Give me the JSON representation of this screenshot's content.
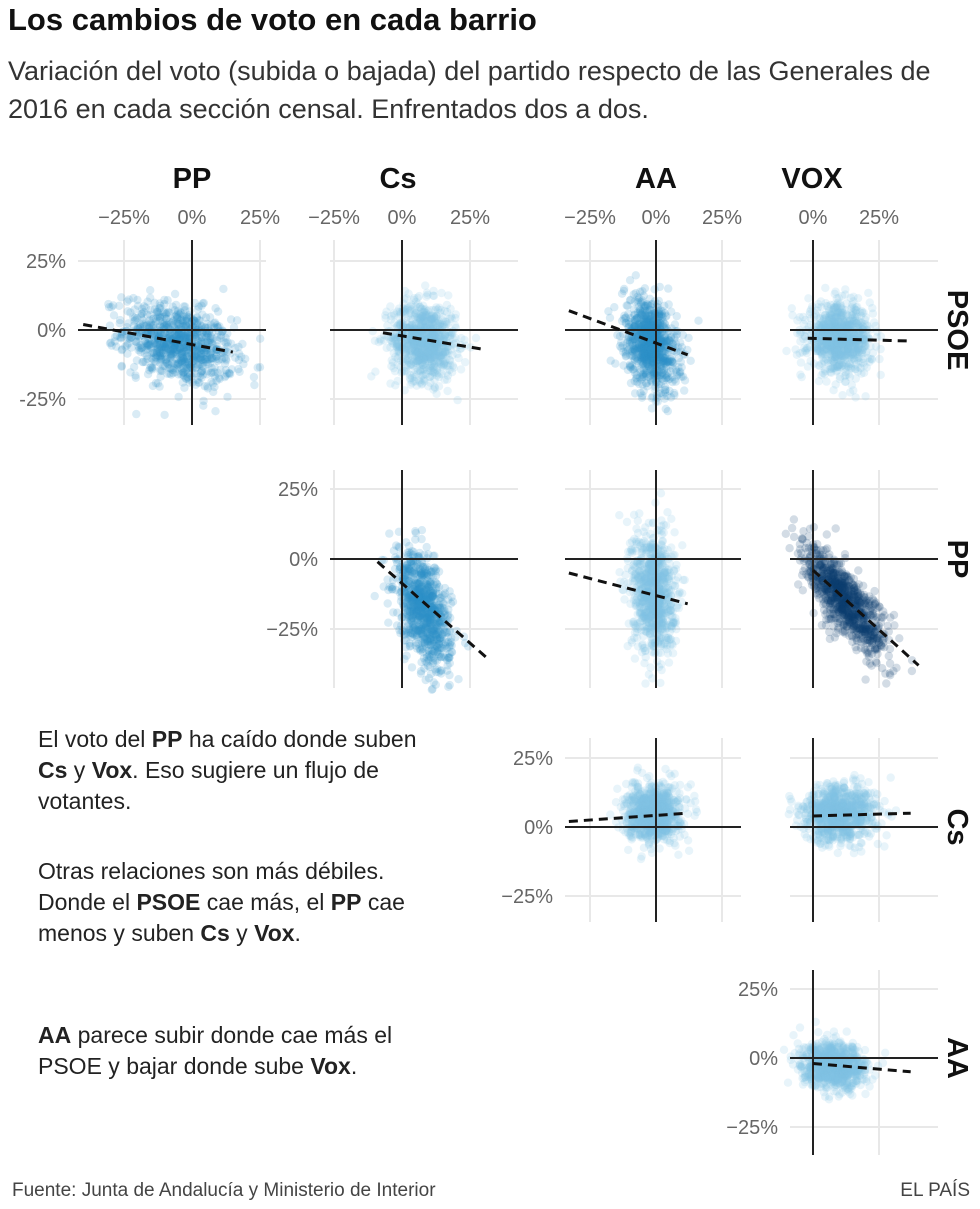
{
  "header": {
    "title": "Los cambios de voto en cada barrio",
    "subtitle": "Variación del voto (subida o bajada) del partido respecto de las Generales de 2016 en cada sección censal. Enfrentados dos a dos."
  },
  "annotations": {
    "p1": [
      {
        "t": "El voto del "
      },
      {
        "t": "PP",
        "b": true
      },
      {
        "t": " ha caído donde suben "
      },
      {
        "t": "Cs",
        "b": true
      },
      {
        "t": " y "
      },
      {
        "t": "Vox",
        "b": true
      },
      {
        "t": ". Eso sugiere un flujo de votantes."
      }
    ],
    "p2": [
      {
        "t": "Otras relaciones son más débiles. Donde el "
      },
      {
        "t": "PSOE",
        "b": true
      },
      {
        "t": " cae más, el "
      },
      {
        "t": "PP",
        "b": true
      },
      {
        "t": " cae menos y suben "
      },
      {
        "t": "Cs",
        "b": true
      },
      {
        "t": " y "
      },
      {
        "t": "Vox",
        "b": true
      },
      {
        "t": "."
      }
    ],
    "p3": [
      {
        "t": "AA",
        "b": true
      },
      {
        "t": " parece subir donde cae más el PSOE y bajar donde sube "
      },
      {
        "t": "Vox",
        "b": true
      },
      {
        "t": "."
      }
    ]
  },
  "footer": {
    "source": "Fuente: Junta de Andalucía y Ministerio de Interior",
    "brand": "EL PAÍS"
  },
  "chart_data": {
    "type": "scatter",
    "description_units": "percentage points of vote change vs. 2016 general election",
    "columns": [
      "PP",
      "Cs",
      "AA",
      "VOX"
    ],
    "rows": [
      "PSOE",
      "PP",
      "Cs",
      "AA"
    ],
    "column_ticks": {
      "PP": [
        "−25%",
        "0%",
        "25%"
      ],
      "Cs": [
        "−25%",
        "0%",
        "25%"
      ],
      "AA": [
        "−25%",
        "0%",
        "25%"
      ],
      "VOX": [
        "0%",
        "25%"
      ]
    },
    "row_ticks": {
      "PSOE": [
        "25%",
        "0%",
        "-25%"
      ],
      "PP": [
        "25%",
        "0%",
        "−25%"
      ],
      "Cs": [
        "25%",
        "0%",
        "−25%"
      ],
      "AA": [
        "25%",
        "0%",
        "−25%"
      ]
    },
    "xlim": {
      "PP": [
        -40,
        25
      ],
      "Cs": [
        -25,
        44
      ],
      "AA": [
        -35,
        33
      ],
      "VOX": [
        -8,
        40
      ]
    },
    "ylim": {
      "PSOE": [
        -35,
        35
      ],
      "PP": [
        -47,
        25
      ],
      "Cs": [
        -32,
        35
      ],
      "AA": [
        -35,
        32
      ]
    },
    "colors": {
      "light": "#7fc3e6",
      "medium": "#2c8fca",
      "dark": "#0b3b6e",
      "trend": "#111111",
      "axis": "#222222",
      "grid": "#e8e8e8"
    },
    "panels": [
      {
        "x": "PP",
        "y": "PSOE",
        "shade": "medium",
        "cloud_center": [
          -5,
          -5
        ],
        "cloud_spread": [
          10,
          7
        ],
        "cloud_slope": -0.25,
        "trend": {
          "x": [
            -40,
            15
          ],
          "y": [
            2,
            -8
          ]
        }
      },
      {
        "x": "Cs",
        "y": "PSOE",
        "shade": "light",
        "cloud_center": [
          8,
          -4
        ],
        "cloud_spread": [
          6,
          7
        ],
        "cloud_slope": -0.1,
        "trend": {
          "x": [
            -7,
            30
          ],
          "y": [
            -1,
            -7
          ]
        }
      },
      {
        "x": "AA",
        "y": "PSOE",
        "shade": "medium",
        "cloud_center": [
          -2,
          -5
        ],
        "cloud_spread": [
          5,
          8
        ],
        "cloud_slope": -0.5,
        "trend": {
          "x": [
            -33,
            12
          ],
          "y": [
            7,
            -9
          ]
        }
      },
      {
        "x": "VOX",
        "y": "PSOE",
        "shade": "light",
        "cloud_center": [
          10,
          -3
        ],
        "cloud_spread": [
          6,
          6
        ],
        "cloud_slope": -0.05,
        "trend": {
          "x": [
            -2,
            37
          ],
          "y": [
            -3,
            -4
          ]
        }
      },
      {
        "x": "Cs",
        "y": "PP",
        "shade": "medium",
        "cloud_center": [
          8,
          -18
        ],
        "cloud_spread": [
          5,
          9
        ],
        "cloud_slope": -1.0,
        "trend": {
          "x": [
            -9,
            32
          ],
          "y": [
            -1,
            -36
          ]
        }
      },
      {
        "x": "AA",
        "y": "PP",
        "shade": "light",
        "cloud_center": [
          -1,
          -12
        ],
        "cloud_spread": [
          4,
          11
        ],
        "cloud_slope": -0.3,
        "trend": {
          "x": [
            -33,
            12
          ],
          "y": [
            -5,
            -16
          ]
        }
      },
      {
        "x": "VOX",
        "y": "PP",
        "shade": "dark",
        "cloud_center": [
          12,
          -15
        ],
        "cloud_spread": [
          8,
          6
        ],
        "cloud_slope": -0.95,
        "trend": {
          "x": [
            0,
            40
          ],
          "y": [
            -4,
            -38
          ]
        }
      },
      {
        "x": "AA",
        "y": "Cs",
        "shade": "light",
        "cloud_center": [
          -1,
          5
        ],
        "cloud_spread": [
          5,
          5
        ],
        "cloud_slope": 0.05,
        "trend": {
          "x": [
            -33,
            12
          ],
          "y": [
            2,
            5
          ]
        }
      },
      {
        "x": "VOX",
        "y": "Cs",
        "shade": "light",
        "cloud_center": [
          10,
          5
        ],
        "cloud_spread": [
          7,
          5
        ],
        "cloud_slope": 0.03,
        "trend": {
          "x": [
            0,
            37
          ],
          "y": [
            4,
            5
          ]
        }
      },
      {
        "x": "VOX",
        "y": "AA",
        "shade": "light",
        "cloud_center": [
          8,
          -3
        ],
        "cloud_spread": [
          6,
          4
        ],
        "cloud_slope": -0.1,
        "trend": {
          "x": [
            0,
            37
          ],
          "y": [
            -2,
            -5
          ]
        }
      }
    ]
  }
}
